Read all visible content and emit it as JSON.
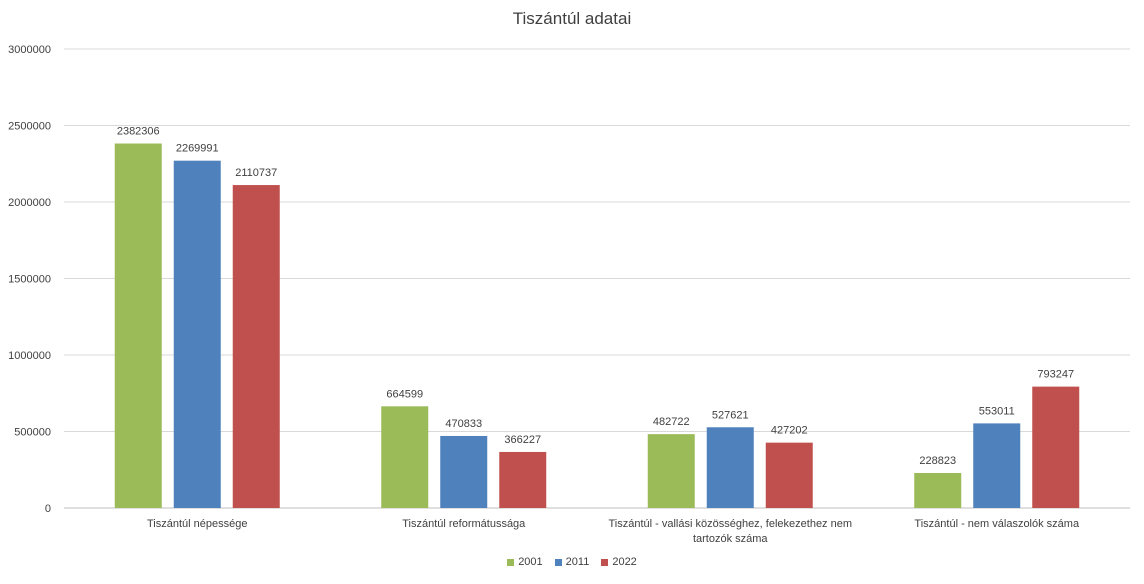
{
  "chart_data": {
    "type": "bar",
    "title": "Tiszántúl adatai",
    "xlabel": "",
    "ylabel": "",
    "ylim": [
      0,
      3000000
    ],
    "yticks": [
      0,
      500000,
      1000000,
      1500000,
      2000000,
      2500000,
      3000000
    ],
    "grid": true,
    "legend_position": "bottom",
    "categories": [
      "Tiszántúl népessége",
      "Tiszántúl reformátussága",
      "Tiszántúl - vallási közösséghez, felekezethez nem tartozók száma",
      "Tiszántúl - nem válaszolók száma"
    ],
    "category_label_lines": [
      [
        "Tiszántúl népessége"
      ],
      [
        "Tiszántúl reformátussága"
      ],
      [
        "Tiszántúl - vallási közösséghez, felekezethez nem",
        "tartozók száma"
      ],
      [
        "Tiszántúl - nem válaszolók száma"
      ]
    ],
    "series": [
      {
        "name": "2001",
        "color": "#9BBB59",
        "values": [
          2382306,
          664599,
          482722,
          228823
        ]
      },
      {
        "name": "2011",
        "color": "#4F81BD",
        "values": [
          2269991,
          470833,
          527621,
          553011
        ]
      },
      {
        "name": "2022",
        "color": "#C0504D",
        "values": [
          2110737,
          366227,
          427202,
          793247
        ]
      }
    ]
  }
}
